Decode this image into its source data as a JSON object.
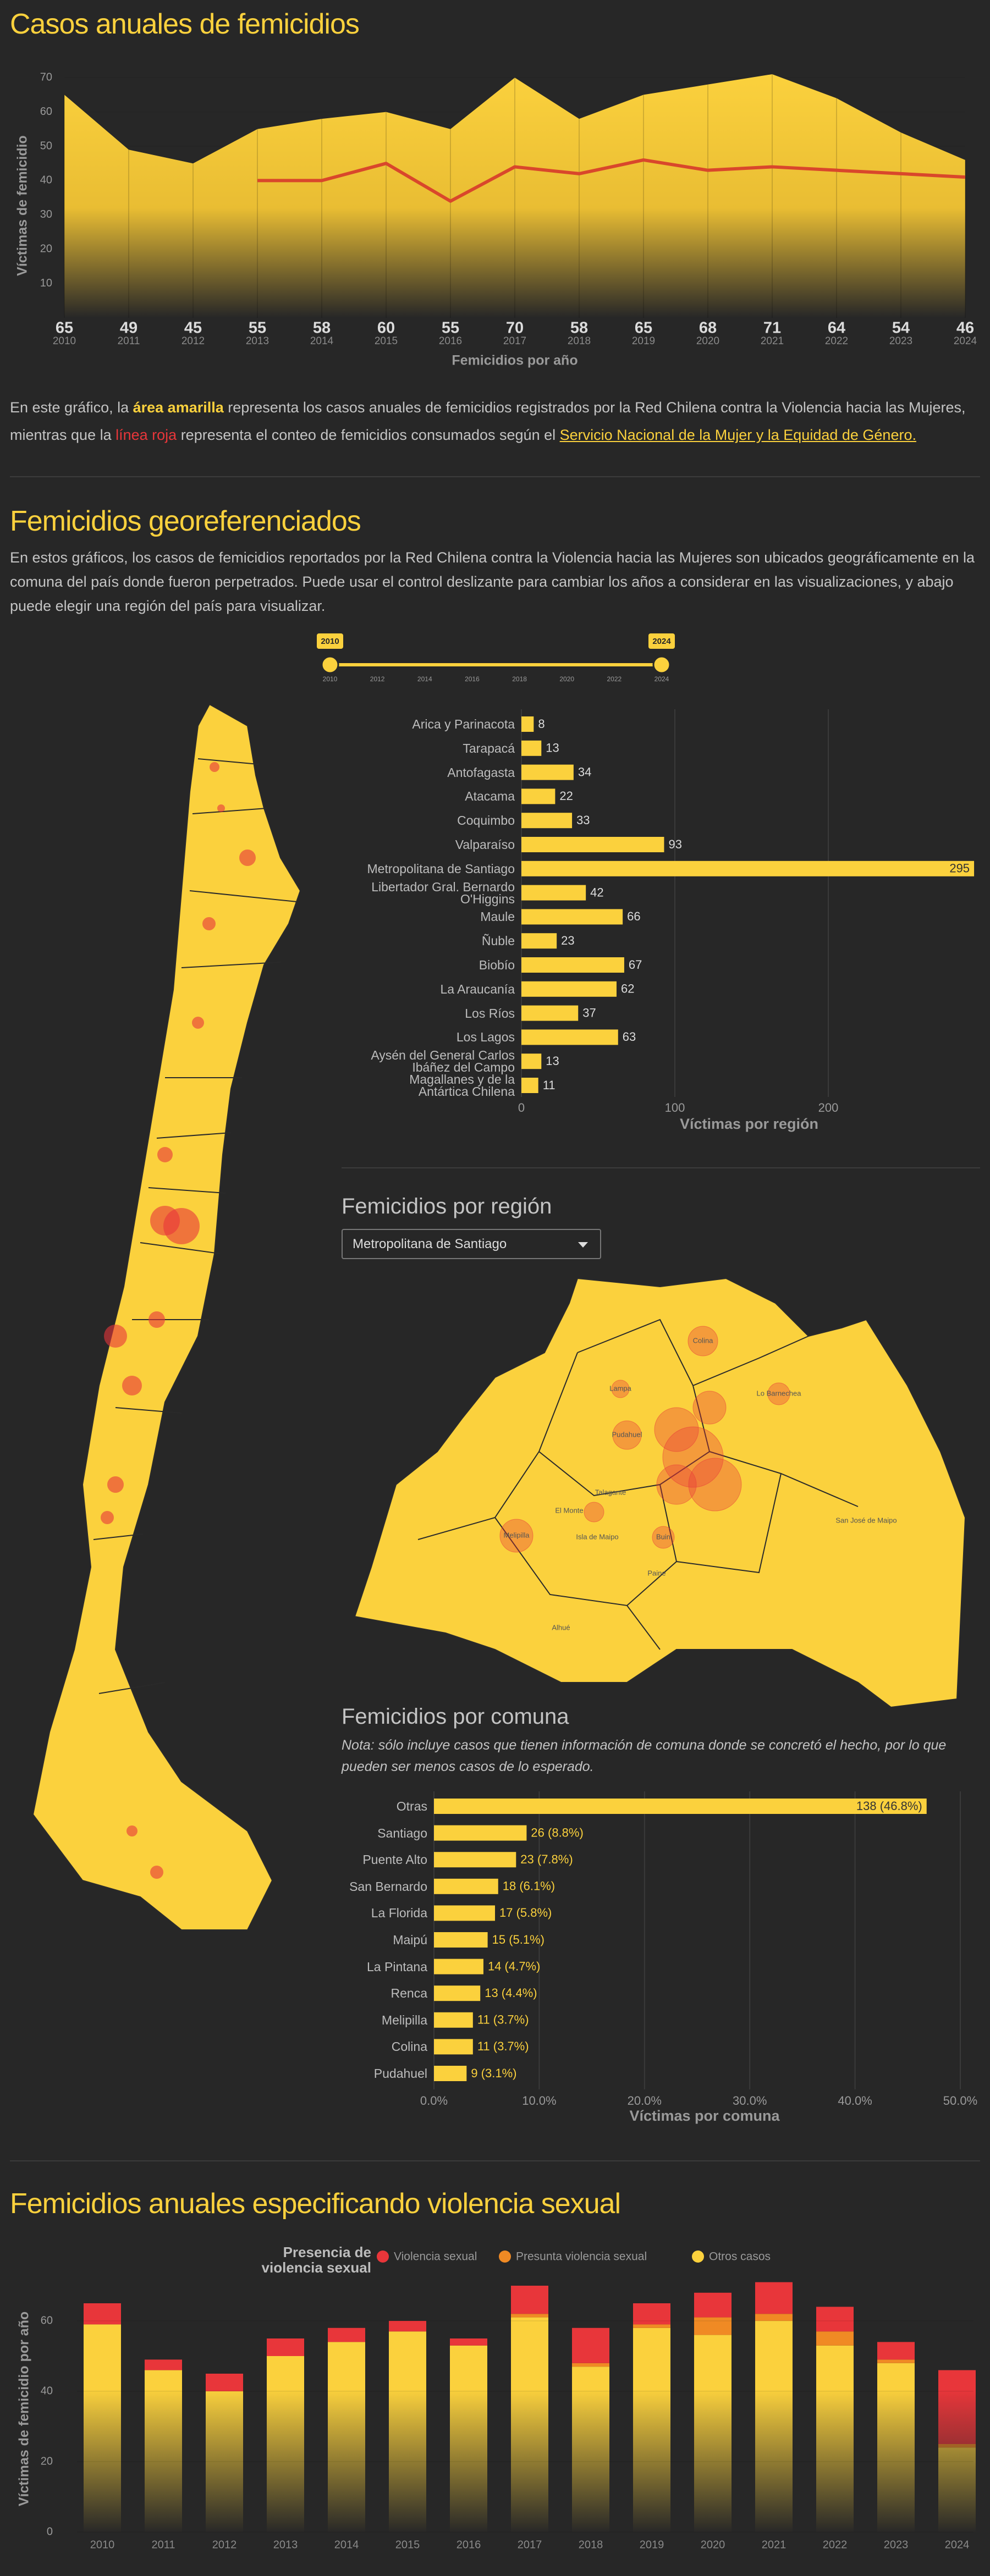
{
  "intro": {
    "text_1": "En este gráfico, la ",
    "highlight_1": "área amarilla",
    "text_2": " representa los casos anuales de femicidios registrados por la Red Chilena contra la Violencia hacia las Mujeres, mientras que la ",
    "highlight_2": "línea roja",
    "text_3": " representa el conteo de femicidios consumados según el ",
    "link": "Servicio Nacional de la Mujer y la Equidad de Género."
  },
  "geo": {
    "title": "Femicidios georeferenciados",
    "paragraph": "En estos gráficos, los casos de femicidios reportados por la Red Chilena contra la Violencia hacia las Mujeres son ubicados geográficamente en la comuna del país donde fueron perpetrados. Puede usar el control deslizante para cambiar los años a considerar en las visualizaciones, y abajo puede elegir una región del país para visualizar."
  },
  "slider": {
    "range": [
      2010,
      2024
    ],
    "ticks": [
      2010,
      2012,
      2014,
      2016,
      2018,
      2020,
      2022,
      2024
    ]
  },
  "region_map": {
    "title": "Femicidios por región",
    "selected": "Metropolitana de Santiago",
    "labels": [
      "Colina",
      "Lampa",
      "Lo Barnechea",
      "Pudahuel",
      "Melipilla",
      "El Monte",
      "Isla de Maipo",
      "Buin",
      "Paine",
      "Alhué",
      "San José de Maipo",
      "Talagante"
    ]
  },
  "chart_data": [
    {
      "type": "area",
      "title": "Casos anuales de femicidios",
      "x_label": "Femicidios por año",
      "y_label": "Víctimas de femicidio",
      "categories": [
        "2010",
        "2011",
        "2012",
        "2013",
        "2014",
        "2015",
        "2016",
        "2017",
        "2018",
        "2019",
        "2020",
        "2021",
        "2022",
        "2023",
        "2024"
      ],
      "series": [
        {
          "mark": "area",
          "color": "#fbd13d",
          "values": [
            65,
            49,
            45,
            55,
            58,
            60,
            55,
            70,
            58,
            65,
            68,
            71,
            64,
            54,
            46
          ]
        },
        {
          "mark": "line",
          "color": "#d9472b",
          "values": [
            null,
            null,
            null,
            40,
            40,
            45,
            34,
            44,
            42,
            46,
            43,
            44,
            43,
            42,
            41
          ]
        }
      ],
      "ylim": [
        0,
        75
      ],
      "yticks": [
        10,
        20,
        30,
        40,
        50,
        60,
        70
      ]
    },
    {
      "type": "hbar",
      "x_label": "Víctimas por región",
      "categories": [
        "Arica y Parinacota",
        "Tarapacá",
        "Antofagasta",
        "Atacama",
        "Coquimbo",
        "Valparaíso",
        "Metropolitana de Santiago",
        "Libertador Gral. Bernardo O'Higgins",
        "Maule",
        "Ñuble",
        "Biobío",
        "La Araucanía",
        "Los Ríos",
        "Los Lagos",
        "Aysén del General Carlos Ibáñez del Campo",
        "Magallanes y de la Antártica Chilena"
      ],
      "values": [
        8,
        13,
        34,
        22,
        33,
        93,
        295,
        42,
        66,
        23,
        67,
        62,
        37,
        63,
        13,
        11
      ],
      "color": "#fbd13d",
      "xlim": [
        0,
        300
      ],
      "xticks": [
        0,
        100,
        200
      ]
    },
    {
      "type": "hbar",
      "title": "Femicidios por comuna",
      "note": "Nota: sólo incluye casos que tienen información de comuna donde se concretó el hecho, por lo que pueden ser menos casos de lo esperado.",
      "x_label": "Víctimas por comuna",
      "categories": [
        "Otras",
        "Santiago",
        "Puente Alto",
        "San Bernardo",
        "La Florida",
        "Maipú",
        "La Pintana",
        "Renca",
        "Melipilla",
        "Colina",
        "Pudahuel"
      ],
      "values": [
        46.8,
        8.8,
        7.8,
        6.1,
        5.8,
        5.1,
        4.7,
        4.4,
        3.7,
        3.7,
        3.1
      ],
      "value_labels": [
        "138 (46.8%)",
        "26 (8.8%)",
        "23 (7.8%)",
        "18 (6.1%)",
        "17 (5.8%)",
        "15 (5.1%)",
        "14 (4.7%)",
        "13 (4.4%)",
        "11 (3.7%)",
        "11 (3.7%)",
        "9 (3.1%)"
      ],
      "color": "#fbd13d",
      "xlim": [
        0,
        50
      ],
      "xticks": [
        {
          "value": 0,
          "label": "0.0%"
        },
        {
          "value": 10,
          "label": "10.0%"
        },
        {
          "value": 20,
          "label": "20.0%"
        },
        {
          "value": 30,
          "label": "30.0%"
        },
        {
          "value": 40,
          "label": "40.0%"
        },
        {
          "value": 50,
          "label": "50.0%"
        }
      ]
    },
    {
      "type": "stacked_bar",
      "title": "Femicidios anuales especificando violencia sexual",
      "legend_title": "Presencia de violencia sexual",
      "y_label": "Víctimas de femicidio por año",
      "categories": [
        "2010",
        "2011",
        "2012",
        "2013",
        "2014",
        "2015",
        "2016",
        "2017",
        "2018",
        "2019",
        "2020",
        "2021",
        "2022",
        "2023",
        "2024"
      ],
      "series": [
        {
          "name": "Violencia sexual",
          "color": "#e8363a",
          "values": [
            6,
            3,
            5,
            5,
            4,
            3,
            2,
            8,
            10,
            6,
            7,
            9,
            7,
            5,
            21
          ]
        },
        {
          "name": "Presunta violencia sexual",
          "color": "#f08a24",
          "values": [
            0,
            0,
            0,
            0,
            0,
            0,
            0,
            1,
            1,
            1,
            5,
            2,
            4,
            1,
            1
          ]
        },
        {
          "name": "Otros casos",
          "color": "#fbd13d",
          "values": [
            59,
            46,
            40,
            50,
            54,
            57,
            53,
            61,
            47,
            58,
            56,
            60,
            53,
            48,
            24
          ]
        }
      ],
      "ylim": [
        0,
        70
      ],
      "yticks": [
        0,
        20,
        40,
        60
      ]
    }
  ]
}
